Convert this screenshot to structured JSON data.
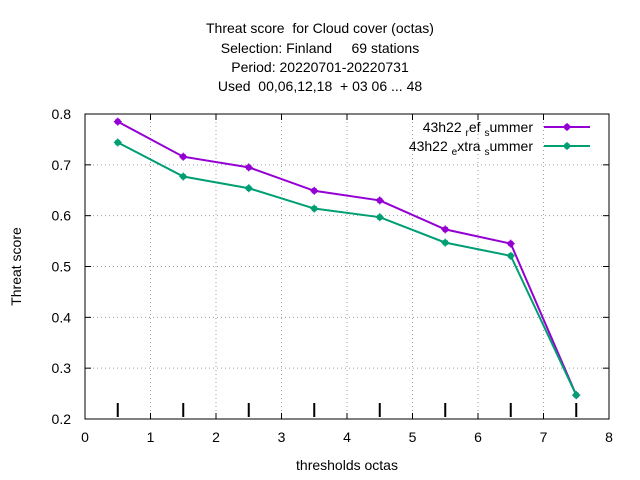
{
  "chart_data": {
    "type": "line",
    "title_lines": [
      "Threat score  for Cloud cover (octas)",
      "Selection: Finland     69 stations",
      "Period: 20220701-20220731",
      "Used  00,06,12,18  + 03 06 ... 48"
    ],
    "xlabel": "thresholds octas",
    "ylabel": "Threat score",
    "xlim": [
      0,
      8
    ],
    "ylim": [
      0.2,
      0.8
    ],
    "xticks": [
      "0",
      "1",
      "2",
      "3",
      "4",
      "5",
      "6",
      "7",
      "8"
    ],
    "yticks": [
      "0.2",
      "0.3",
      "0.4",
      "0.5",
      "0.6",
      "0.7",
      "0.8"
    ],
    "grid": true,
    "legend_position": "top-right",
    "x": [
      0.5,
      1.5,
      2.5,
      3.5,
      4.5,
      5.5,
      6.5,
      7.5
    ],
    "threshold_marks": [
      0.5,
      1.5,
      2.5,
      3.5,
      4.5,
      5.5,
      6.5,
      7.5
    ],
    "series": [
      {
        "name": "43h22_ref_summer",
        "legend_parts": [
          [
            "43h22 ",
            0
          ],
          [
            "r",
            1
          ],
          [
            "ef ",
            0
          ],
          [
            "s",
            1
          ],
          [
            "ummer",
            0
          ]
        ],
        "color": "#9400d3",
        "values": [
          0.785,
          0.716,
          0.695,
          0.649,
          0.63,
          0.573,
          0.545,
          0.247
        ]
      },
      {
        "name": "43h22_extra_summer",
        "legend_parts": [
          [
            "43h22 ",
            0
          ],
          [
            "e",
            1
          ],
          [
            "xtra ",
            0
          ],
          [
            "s",
            1
          ],
          [
            "ummer",
            0
          ]
        ],
        "color": "#009e73",
        "values": [
          0.744,
          0.677,
          0.654,
          0.614,
          0.597,
          0.547,
          0.521,
          0.247
        ]
      }
    ]
  }
}
